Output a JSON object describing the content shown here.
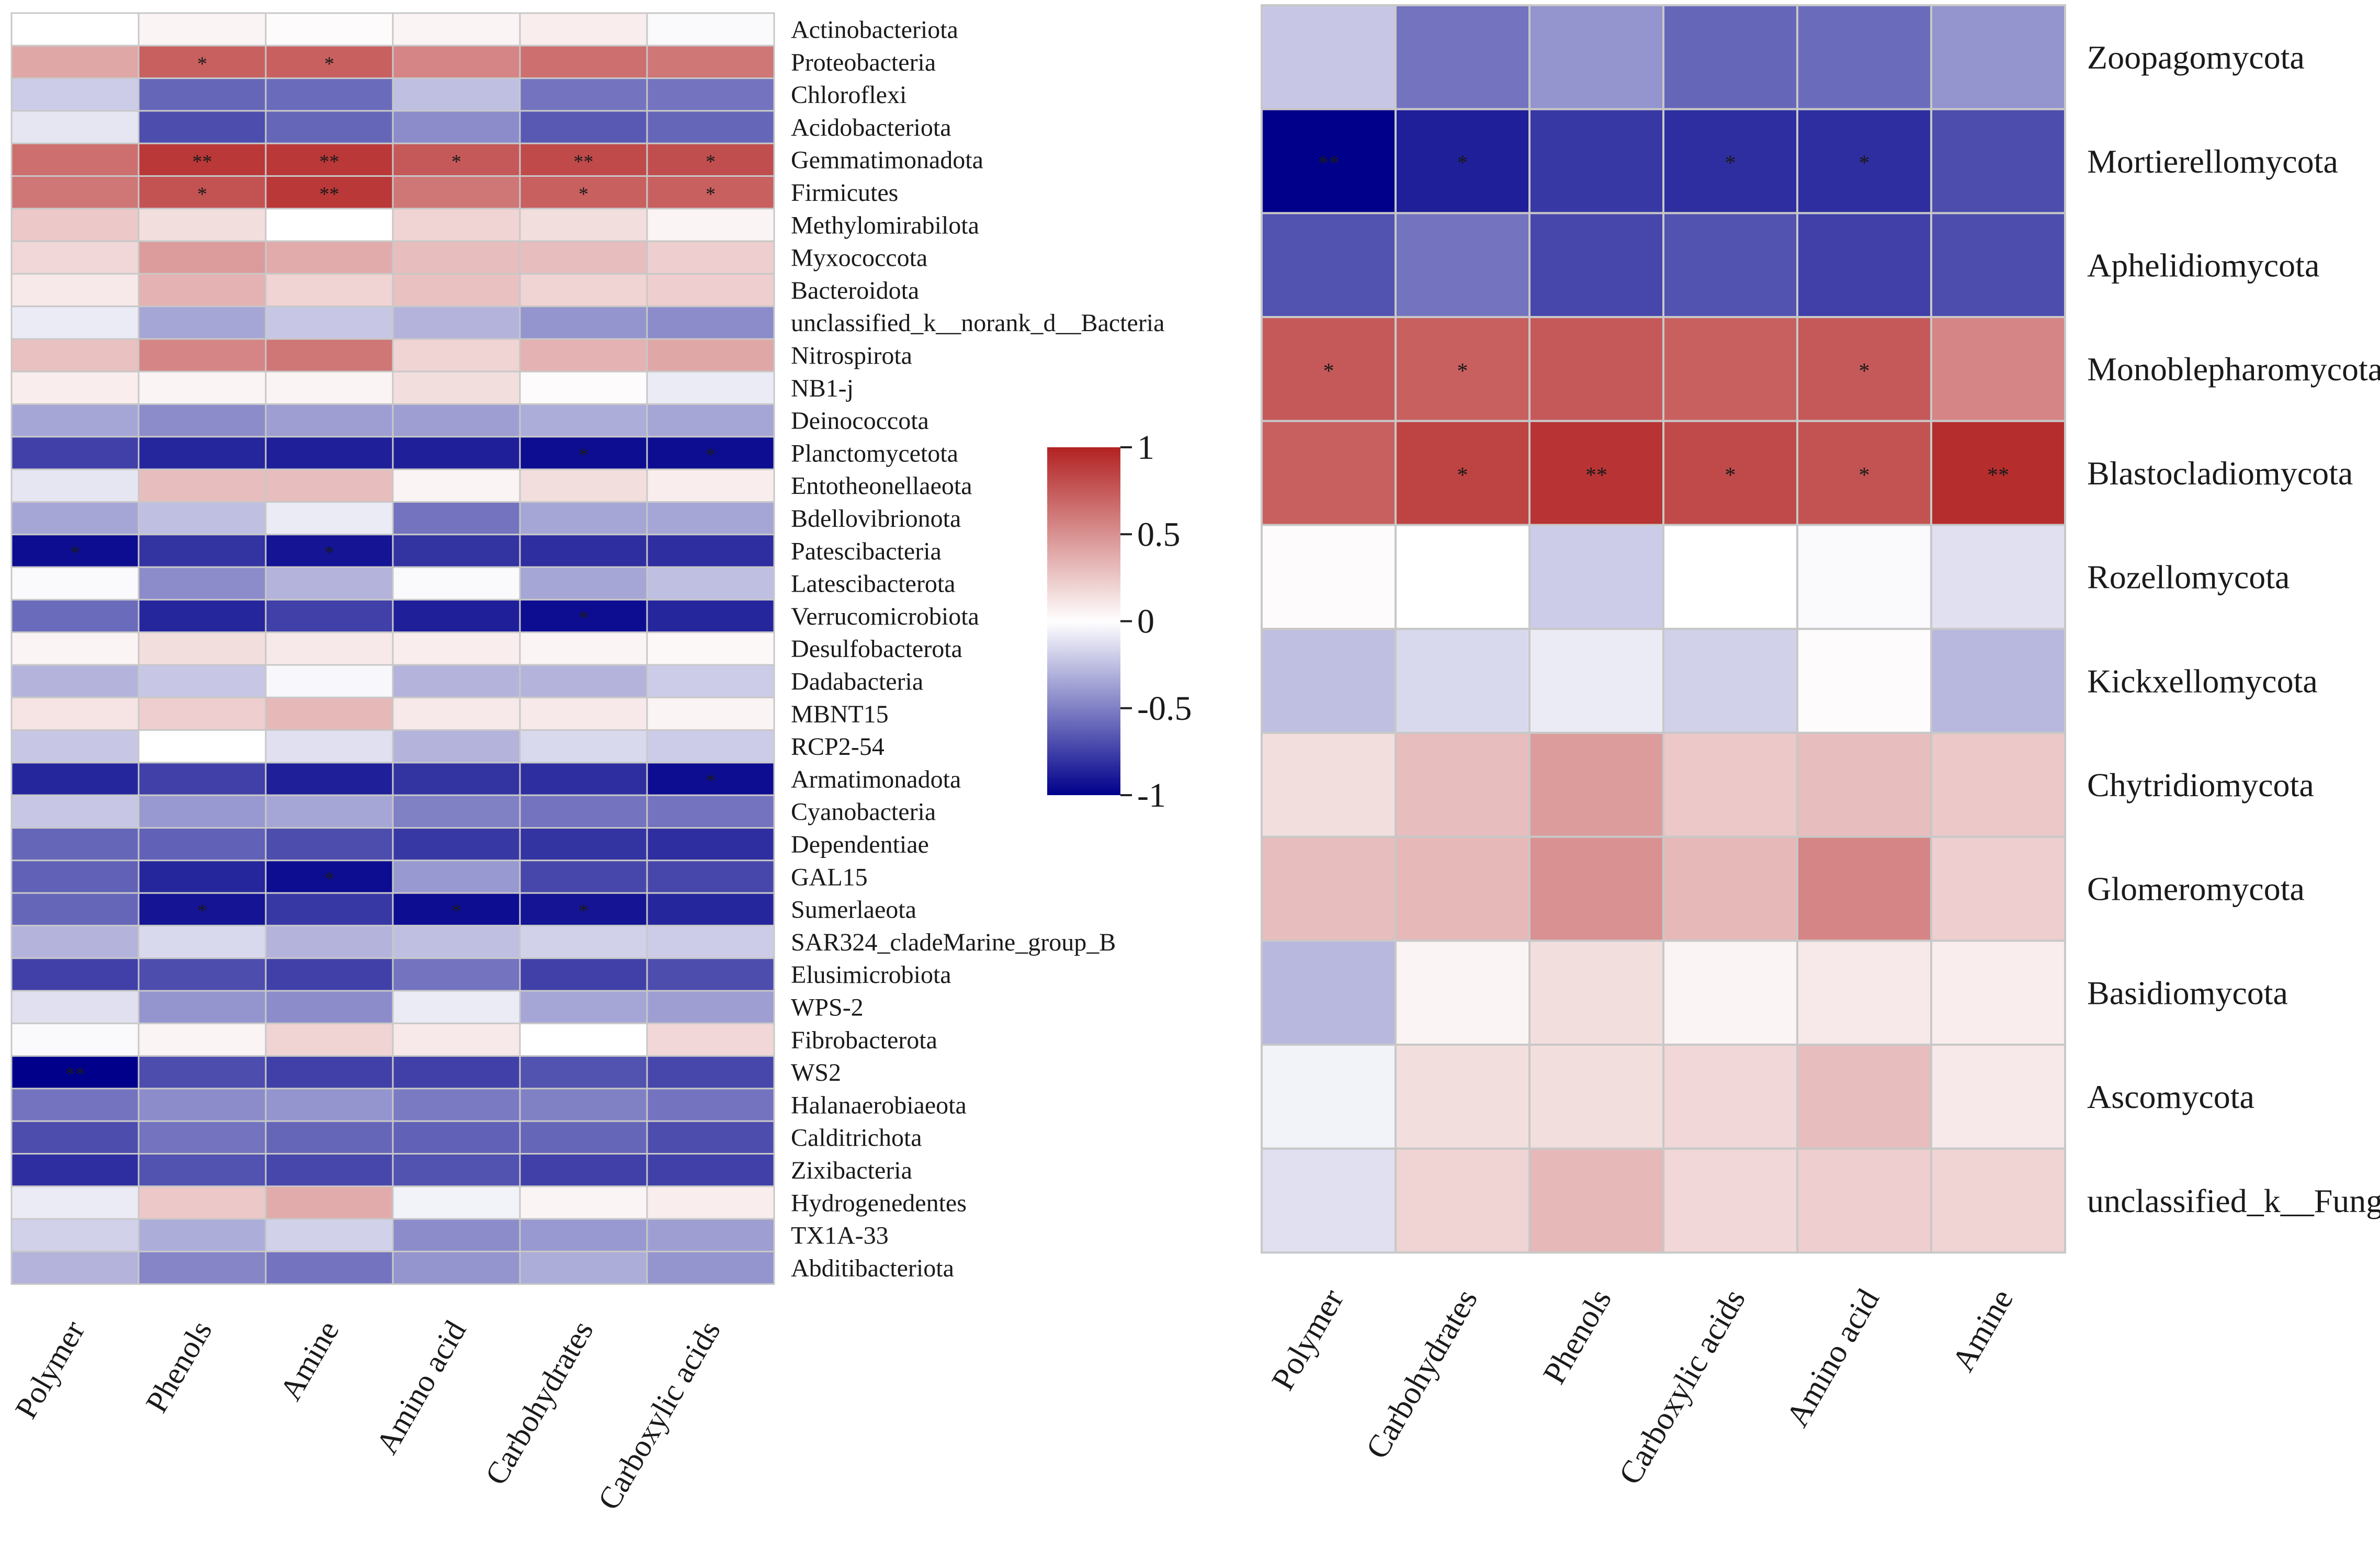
{
  "chart_data": [
    {
      "type": "heatmap",
      "title": "",
      "panel": "bacteria",
      "columns": [
        "Polymer",
        "Phenols",
        "Amine",
        "Amino acid",
        "Carbohydrates",
        "Carboxylic acids"
      ],
      "rows": [
        "Actinobacteriota",
        "Proteobacteria",
        "Chloroflexi",
        "Acidobacteriota",
        "Gemmatimonadota",
        "Firmicutes",
        "Methylomirabilota",
        "Myxococcota",
        "Bacteroidota",
        "unclassified_k__norank_d__Bacteria",
        "Nitrospirota",
        "NB1-j",
        "Deinococcota",
        "Planctomycetota",
        "Entotheonellaeota",
        "Bdellovibrionota",
        "Patescibacteria",
        "Latescibacterota",
        "Verrucomicrobiota",
        "Desulfobacterota",
        "Dadabacteria",
        "MBNT15",
        "RCP2-54",
        "Armatimonadota",
        "Cyanobacteria",
        "Dependentiae",
        "GAL15",
        "Sumerlaeota",
        "SAR324_cladeMarine_group_B",
        "Elusimicrobiota",
        "WPS-2",
        "Fibrobacterota",
        "WS2",
        "Halanaerobiaeota",
        "Calditrichota",
        "Zixibacteria",
        "Hydrogenedentes",
        "TX1A-33",
        "Abditibacteriota"
      ],
      "values": [
        [
          0.0,
          0.05,
          0.02,
          0.05,
          0.08,
          -0.02
        ],
        [
          0.4,
          0.72,
          0.72,
          0.55,
          0.65,
          0.62
        ],
        [
          -0.2,
          -0.6,
          -0.58,
          -0.25,
          -0.55,
          -0.55
        ],
        [
          -0.1,
          -0.7,
          -0.6,
          -0.45,
          -0.65,
          -0.6
        ],
        [
          0.65,
          0.9,
          0.9,
          0.75,
          0.82,
          0.8
        ],
        [
          0.62,
          0.78,
          0.9,
          0.62,
          0.72,
          0.72
        ],
        [
          0.25,
          0.15,
          0.0,
          0.2,
          0.15,
          0.05
        ],
        [
          0.18,
          0.45,
          0.38,
          0.3,
          0.3,
          0.22
        ],
        [
          0.1,
          0.35,
          0.2,
          0.28,
          0.2,
          0.22
        ],
        [
          -0.08,
          -0.35,
          -0.22,
          -0.3,
          -0.42,
          -0.45
        ],
        [
          0.28,
          0.55,
          0.62,
          0.2,
          0.35,
          0.4
        ],
        [
          0.08,
          0.05,
          0.05,
          0.15,
          0.02,
          -0.08
        ],
        [
          -0.35,
          -0.45,
          -0.38,
          -0.38,
          -0.32,
          -0.35
        ],
        [
          -0.75,
          -0.85,
          -0.88,
          -0.88,
          -0.95,
          -0.95
        ],
        [
          -0.1,
          0.3,
          0.3,
          0.05,
          0.15,
          0.08
        ],
        [
          -0.35,
          -0.25,
          -0.08,
          -0.55,
          -0.35,
          -0.35
        ],
        [
          -0.95,
          -0.8,
          -0.92,
          -0.8,
          -0.82,
          -0.82
        ],
        [
          -0.02,
          -0.45,
          -0.3,
          -0.02,
          -0.35,
          -0.25
        ],
        [
          -0.58,
          -0.85,
          -0.75,
          -0.88,
          -0.95,
          -0.85
        ],
        [
          0.05,
          0.15,
          0.1,
          0.08,
          0.05,
          0.03
        ],
        [
          -0.3,
          -0.22,
          -0.03,
          -0.3,
          -0.3,
          -0.2
        ],
        [
          0.12,
          0.22,
          0.32,
          0.1,
          0.1,
          0.05
        ],
        [
          -0.22,
          0.0,
          -0.12,
          -0.3,
          -0.15,
          -0.2
        ],
        [
          -0.85,
          -0.75,
          -0.88,
          -0.8,
          -0.82,
          -0.95
        ],
        [
          -0.22,
          -0.4,
          -0.35,
          -0.5,
          -0.55,
          -0.55
        ],
        [
          -0.6,
          -0.62,
          -0.7,
          -0.78,
          -0.8,
          -0.82
        ],
        [
          -0.62,
          -0.85,
          -0.95,
          -0.4,
          -0.72,
          -0.72
        ],
        [
          -0.6,
          -0.92,
          -0.78,
          -0.95,
          -0.92,
          -0.85
        ],
        [
          -0.3,
          -0.15,
          -0.3,
          -0.25,
          -0.18,
          -0.2
        ],
        [
          -0.75,
          -0.7,
          -0.75,
          -0.55,
          -0.75,
          -0.7
        ],
        [
          -0.12,
          -0.42,
          -0.45,
          -0.08,
          -0.35,
          -0.38
        ],
        [
          -0.02,
          0.05,
          0.2,
          0.1,
          0.0,
          0.18
        ],
        [
          -1.0,
          -0.7,
          -0.75,
          -0.75,
          -0.68,
          -0.72
        ],
        [
          -0.55,
          -0.45,
          -0.42,
          -0.52,
          -0.5,
          -0.55
        ],
        [
          -0.7,
          -0.55,
          -0.6,
          -0.62,
          -0.6,
          -0.7
        ],
        [
          -0.82,
          -0.68,
          -0.72,
          -0.68,
          -0.75,
          -0.75
        ],
        [
          -0.08,
          0.25,
          0.38,
          -0.05,
          0.05,
          0.08
        ],
        [
          -0.18,
          -0.32,
          -0.18,
          -0.45,
          -0.4,
          -0.38
        ],
        [
          -0.3,
          -0.48,
          -0.55,
          -0.42,
          -0.32,
          -0.42
        ]
      ],
      "significance": [
        [
          "",
          "",
          "",
          "",
          "",
          ""
        ],
        [
          "",
          "*",
          "*",
          "",
          "",
          ""
        ],
        [
          "",
          "",
          "",
          "",
          "",
          ""
        ],
        [
          "",
          "",
          "",
          "",
          "",
          ""
        ],
        [
          "",
          "**",
          "**",
          "*",
          "**",
          "*"
        ],
        [
          "",
          "*",
          "**",
          "",
          "*",
          "*"
        ],
        [
          "",
          "",
          "",
          "",
          "",
          ""
        ],
        [
          "",
          "",
          "",
          "",
          "",
          ""
        ],
        [
          "",
          "",
          "",
          "",
          "",
          ""
        ],
        [
          "",
          "",
          "",
          "",
          "",
          ""
        ],
        [
          "",
          "",
          "",
          "",
          "",
          ""
        ],
        [
          "",
          "",
          "",
          "",
          "",
          ""
        ],
        [
          "",
          "",
          "",
          "",
          "",
          ""
        ],
        [
          "",
          "",
          "",
          "",
          "*",
          "*"
        ],
        [
          "",
          "",
          "",
          "",
          "",
          ""
        ],
        [
          "",
          "",
          "",
          "",
          "",
          ""
        ],
        [
          "*",
          "",
          "*",
          "",
          "",
          ""
        ],
        [
          "",
          "",
          "",
          "",
          "",
          ""
        ],
        [
          "",
          "",
          "",
          "",
          "*",
          ""
        ],
        [
          "",
          "",
          "",
          "",
          "",
          ""
        ],
        [
          "",
          "",
          "",
          "",
          "",
          ""
        ],
        [
          "",
          "",
          "",
          "",
          "",
          ""
        ],
        [
          "",
          "",
          "",
          "",
          "",
          ""
        ],
        [
          "",
          "",
          "",
          "",
          "",
          "*"
        ],
        [
          "",
          "",
          "",
          "",
          "",
          ""
        ],
        [
          "",
          "",
          "",
          "",
          "",
          ""
        ],
        [
          "",
          "",
          "*",
          "",
          "",
          ""
        ],
        [
          "",
          "*",
          "",
          "*",
          "*",
          ""
        ],
        [
          "",
          "",
          "",
          "",
          "",
          ""
        ],
        [
          "",
          "",
          "",
          "",
          "",
          ""
        ],
        [
          "",
          "",
          "",
          "",
          "",
          ""
        ],
        [
          "",
          "",
          "",
          "",
          "",
          ""
        ],
        [
          "**",
          "",
          "",
          "",
          "",
          ""
        ],
        [
          "",
          "",
          "",
          "",
          "",
          ""
        ],
        [
          "",
          "",
          "",
          "",
          "",
          ""
        ],
        [
          "",
          "",
          "",
          "",
          "",
          ""
        ],
        [
          "",
          "",
          "",
          "",
          "",
          ""
        ],
        [
          "",
          "",
          "",
          "",
          "",
          ""
        ],
        [
          "",
          "",
          "",
          "",
          "",
          ""
        ]
      ],
      "value_range": [
        -1,
        1
      ]
    },
    {
      "type": "heatmap",
      "title": "",
      "panel": "fungi",
      "columns": [
        "Polymer",
        "Carbohydrates",
        "Phenols",
        "Carboxylic acids",
        "Amino acid",
        "Amine"
      ],
      "rows": [
        "Zoopagomycota",
        "Mortierellomycota",
        "Aphelidiomycota",
        "Monoblepharomycota",
        "Blastocladiomycota",
        "Rozellomycota",
        "Kickxellomycota",
        "Chytridiomycota",
        "Glomeromycota",
        "Basidiomycota",
        "Ascomycota",
        "unclassified_k__Fungi"
      ],
      "values": [
        [
          -0.22,
          -0.55,
          -0.42,
          -0.6,
          -0.58,
          -0.42
        ],
        [
          -1.0,
          -0.88,
          -0.78,
          -0.82,
          -0.82,
          -0.7
        ],
        [
          -0.68,
          -0.55,
          -0.72,
          -0.68,
          -0.75,
          -0.7
        ],
        [
          0.75,
          0.72,
          0.75,
          0.72,
          0.75,
          0.55
        ],
        [
          0.72,
          0.85,
          0.92,
          0.82,
          0.78,
          0.95
        ],
        [
          0.02,
          0.0,
          -0.2,
          0.0,
          -0.02,
          -0.12
        ],
        [
          -0.25,
          -0.15,
          -0.08,
          -0.18,
          0.02,
          -0.28
        ],
        [
          0.15,
          0.3,
          0.45,
          0.25,
          0.3,
          0.25
        ],
        [
          0.3,
          0.32,
          0.5,
          0.32,
          0.55,
          0.22
        ],
        [
          -0.28,
          0.05,
          0.15,
          0.05,
          0.1,
          0.08
        ],
        [
          -0.05,
          0.15,
          0.15,
          0.18,
          0.3,
          0.1
        ],
        [
          -0.12,
          0.2,
          0.32,
          0.18,
          0.22,
          0.2
        ]
      ],
      "significance": [
        [
          "",
          "",
          "",
          "",
          "",
          ""
        ],
        [
          "**",
          "*",
          "",
          "*",
          "*",
          ""
        ],
        [
          "",
          "",
          "",
          "",
          "",
          ""
        ],
        [
          "*",
          "*",
          "",
          "",
          "*",
          ""
        ],
        [
          "",
          "*",
          "**",
          "*",
          "*",
          "**"
        ],
        [
          "",
          "",
          "",
          "",
          "",
          ""
        ],
        [
          "",
          "",
          "",
          "",
          "",
          ""
        ],
        [
          "",
          "",
          "",
          "",
          "",
          ""
        ],
        [
          "",
          "",
          "",
          "",
          "",
          ""
        ],
        [
          "",
          "",
          "",
          "",
          "",
          ""
        ],
        [
          "",
          "",
          "",
          "",
          "",
          ""
        ],
        [
          "",
          "",
          "",
          "",
          "",
          ""
        ]
      ],
      "value_range": [
        -1,
        1
      ]
    }
  ],
  "legend": {
    "ticks": [
      1,
      0.5,
      0,
      -0.5,
      -1
    ],
    "tick_labels": [
      "1",
      "0.5",
      "0",
      "-0.5",
      "-1"
    ],
    "color_low": "#00008b",
    "color_mid": "#ffffff",
    "color_high": "#b22222"
  },
  "colors": {
    "cell_border": "#c8c8c8",
    "text": "#1a1a1a"
  }
}
